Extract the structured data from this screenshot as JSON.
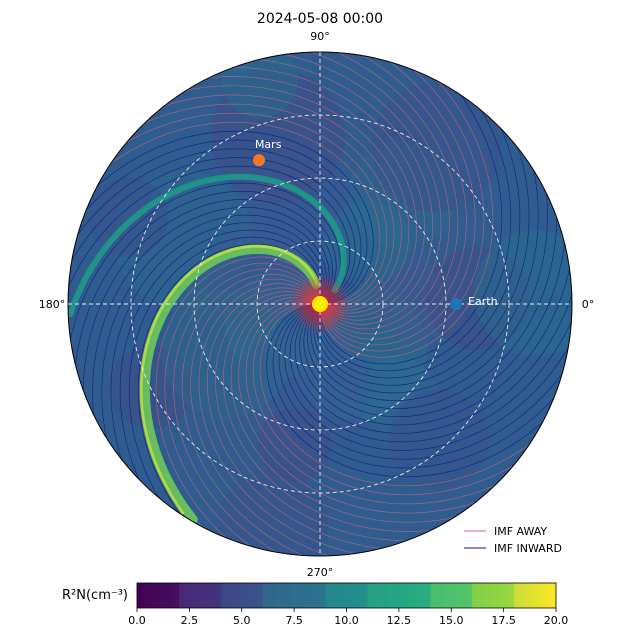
{
  "chart_data": {
    "type": "polar-heatmap",
    "title": "2024-05-08 00:00",
    "angle_labels": {
      "deg0": "0°",
      "deg90": "90°",
      "deg180": "180°",
      "deg270": "270°"
    },
    "planets": [
      {
        "name": "Mars",
        "angle_deg": 113,
        "r_frac": 0.62,
        "color": "#f07a2a"
      },
      {
        "name": "Earth",
        "angle_deg": 0,
        "r_frac": 0.54,
        "color": "#1f78b4"
      }
    ],
    "sun": {
      "color": "#ffee00"
    },
    "legend": [
      {
        "label": "IMF AWAY",
        "color": "#e0607a"
      },
      {
        "label": "IMF INWARD",
        "color": "#1a1a8a"
      }
    ],
    "colorbar": {
      "label": "R²N(cm⁻³)",
      "min": 0,
      "max": 20,
      "ticks": [
        "0.0",
        "2.5",
        "5.0",
        "7.5",
        "10.0",
        "12.5",
        "15.0",
        "17.5",
        "20.0"
      ],
      "colormap": "viridis"
    },
    "grid": true
  }
}
